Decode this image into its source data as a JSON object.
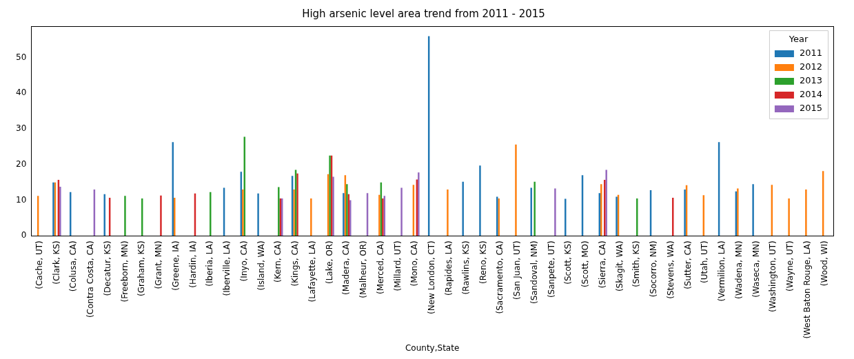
{
  "chart_data": {
    "type": "bar",
    "title": "High arsenic level area trend from 2011 - 2015",
    "x_label": "County,State",
    "legend_title": "Year",
    "legend": "upper right",
    "grid": false,
    "categories": [
      "(Cache, UT)",
      "(Clark, KS)",
      "(Colusa, CA)",
      "(Contra Costa, CA)",
      "(Decatur, KS)",
      "(Freeborn, MN)",
      "(Graham, KS)",
      "(Grant, MN)",
      "(Greene, IA)",
      "(Hardin, IA)",
      "(Iberia, LA)",
      "(Iberville, LA)",
      "(Inyo, CA)",
      "(Island, WA)",
      "(Kern, CA)",
      "(Kings, CA)",
      "(Lafayette, LA)",
      "(Lake, OR)",
      "(Madera, CA)",
      "(Malheur, OR)",
      "(Merced, CA)",
      "(Millard, UT)",
      "(Mono, CA)",
      "(New London, CT)",
      "(Rapides, LA)",
      "(Rawlins, KS)",
      "(Reno, KS)",
      "(Sacramento, CA)",
      "(San Juan, UT)",
      "(Sandoval, NM)",
      "(Sanpete, UT)",
      "(Scott, KS)",
      "(Scott, MO)",
      "(Sierra, CA)",
      "(Skagit, WA)",
      "(Smith, KS)",
      "(Socorro, NM)",
      "(Stevens, WA)",
      "(Sutter, CA)",
      "(Utah, UT)",
      "(Vermilion, LA)",
      "(Wadena, MN)",
      "(Waseca, MN)",
      "(Washington, UT)",
      "(Wayne, UT)",
      "(West Baton Rouge, LA)",
      "(Wood, WI)"
    ],
    "series": [
      {
        "name": "2011",
        "color": "#1f77b4",
        "values": [
          null,
          15,
          12.3,
          null,
          11.7,
          null,
          null,
          null,
          26.3,
          null,
          null,
          13.5,
          18,
          11.9,
          null,
          16.8,
          null,
          null,
          12,
          null,
          null,
          null,
          null,
          56,
          null,
          15.2,
          19.7,
          11,
          null,
          13.5,
          null,
          10.4,
          17,
          12,
          11,
          null,
          12.8,
          null,
          13,
          null,
          26.3,
          12.5,
          14.5,
          null,
          null,
          null,
          null
        ]
      },
      {
        "name": "2012",
        "color": "#ff7f0e",
        "values": [
          11.2,
          15,
          null,
          null,
          null,
          null,
          null,
          null,
          10.7,
          null,
          null,
          null,
          13,
          null,
          null,
          13,
          10.5,
          17.3,
          17,
          null,
          11.5,
          null,
          14.3,
          null,
          13,
          null,
          null,
          10.5,
          25.6,
          null,
          null,
          null,
          null,
          14.5,
          11.5,
          null,
          null,
          null,
          14.2,
          11.4,
          null,
          13.3,
          null,
          14.3,
          10.5,
          13,
          18.2
        ]
      },
      {
        "name": "2013",
        "color": "#2ca02c",
        "values": [
          null,
          null,
          null,
          null,
          null,
          11.2,
          10.5,
          null,
          null,
          null,
          12.3,
          null,
          27.8,
          null,
          13.7,
          18.5,
          null,
          22.5,
          14.5,
          null,
          15,
          null,
          null,
          null,
          null,
          null,
          null,
          null,
          null,
          15.2,
          null,
          null,
          null,
          null,
          null,
          10.5,
          null,
          null,
          null,
          null,
          null,
          null,
          null,
          null,
          null,
          null,
          null
        ]
      },
      {
        "name": "2014",
        "color": "#d62728",
        "values": [
          null,
          15.7,
          null,
          null,
          10.7,
          null,
          null,
          11.3,
          null,
          11.9,
          null,
          null,
          null,
          null,
          10.5,
          17.5,
          null,
          22.5,
          11.7,
          null,
          10.5,
          null,
          15.8,
          null,
          null,
          null,
          null,
          null,
          null,
          null,
          null,
          null,
          null,
          15.7,
          null,
          null,
          null,
          10.7,
          null,
          null,
          null,
          null,
          null,
          null,
          null,
          null,
          null
        ]
      },
      {
        "name": "2015",
        "color": "#9467bd",
        "values": [
          null,
          13.8,
          null,
          13,
          null,
          null,
          null,
          null,
          null,
          null,
          null,
          null,
          null,
          null,
          10.5,
          null,
          null,
          16.6,
          10,
          12,
          11.2,
          13.5,
          17.8,
          null,
          null,
          null,
          null,
          null,
          null,
          null,
          13.3,
          null,
          null,
          18.5,
          null,
          null,
          null,
          null,
          null,
          null,
          null,
          null,
          null,
          null,
          null,
          null,
          null
        ]
      }
    ],
    "ylim": [
      0,
      58.8
    ],
    "yticks": [
      0,
      10,
      20,
      30,
      40,
      50
    ]
  }
}
